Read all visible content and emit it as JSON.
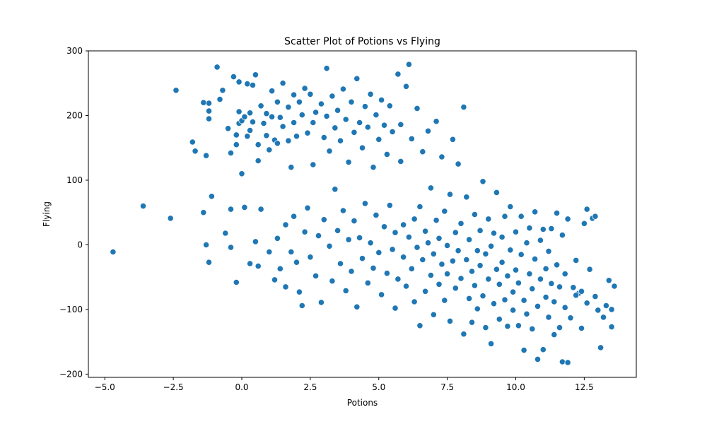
{
  "chart_data": {
    "type": "scatter",
    "title": "Scatter Plot of Potions vs Flying",
    "xlabel": "Potions",
    "ylabel": "Flying",
    "xlim": [
      -5.6,
      14.4
    ],
    "ylim": [
      -205,
      300
    ],
    "x_ticks": [
      -5.0,
      -2.5,
      0.0,
      2.5,
      5.0,
      7.5,
      10.0,
      12.5
    ],
    "x_tick_labels": [
      "−5.0",
      "−2.5",
      "0.0",
      "2.5",
      "5.0",
      "7.5",
      "10.0",
      "12.5"
    ],
    "y_ticks": [
      -200,
      -100,
      0,
      100,
      200,
      300
    ],
    "y_tick_labels": [
      "−200",
      "−100",
      "0",
      "100",
      "200",
      "300"
    ],
    "grid": false,
    "marker_color": "#1f77b4",
    "marker_edge_color": "#ffffff",
    "series": [
      {
        "points": [
          [
            -4.7,
            -11
          ],
          [
            -3.6,
            60
          ],
          [
            -2.6,
            41
          ],
          [
            -2.4,
            239
          ],
          [
            -1.8,
            159
          ],
          [
            -1.7,
            145
          ],
          [
            -1.4,
            220
          ],
          [
            -1.4,
            50
          ],
          [
            -1.3,
            0
          ],
          [
            -1.3,
            138
          ],
          [
            -1.2,
            219
          ],
          [
            -1.2,
            -27
          ],
          [
            -1.2,
            207
          ],
          [
            -1.2,
            195
          ],
          [
            -1.1,
            75
          ],
          [
            -0.9,
            275
          ],
          [
            -0.8,
            225
          ],
          [
            -0.7,
            239
          ],
          [
            -0.6,
            18
          ],
          [
            -0.5,
            180
          ],
          [
            -0.4,
            -4
          ],
          [
            -0.4,
            142
          ],
          [
            -0.4,
            55
          ],
          [
            -0.3,
            260
          ],
          [
            -0.2,
            170
          ],
          [
            -0.2,
            155
          ],
          [
            -0.2,
            -58
          ],
          [
            -0.1,
            206
          ],
          [
            -0.1,
            188
          ],
          [
            -0.1,
            252
          ],
          [
            0.0,
            110
          ],
          [
            0.0,
            192
          ],
          [
            0.1,
            58
          ],
          [
            0.1,
            198
          ],
          [
            0.2,
            168
          ],
          [
            0.2,
            249
          ],
          [
            0.3,
            204
          ],
          [
            0.3,
            177
          ],
          [
            0.3,
            -29
          ],
          [
            0.4,
            190
          ],
          [
            0.4,
            247
          ],
          [
            0.5,
            5
          ],
          [
            0.5,
            263
          ],
          [
            0.6,
            155
          ],
          [
            0.6,
            -33
          ],
          [
            0.6,
            130
          ],
          [
            0.7,
            215
          ],
          [
            0.7,
            55
          ],
          [
            0.8,
            188
          ],
          [
            0.9,
            169
          ],
          [
            0.9,
            203
          ],
          [
            1.0,
            147
          ],
          [
            1.0,
            -11
          ],
          [
            1.1,
            238
          ],
          [
            1.1,
            198
          ],
          [
            1.2,
            162
          ],
          [
            1.2,
            -54
          ],
          [
            1.3,
            221
          ],
          [
            1.3,
            10
          ],
          [
            1.3,
            157
          ],
          [
            1.4,
            197
          ],
          [
            1.4,
            -37
          ],
          [
            1.5,
            250
          ],
          [
            1.5,
            183
          ],
          [
            1.6,
            31
          ],
          [
            1.6,
            -65
          ],
          [
            1.7,
            213
          ],
          [
            1.7,
            161
          ],
          [
            1.8,
            120
          ],
          [
            1.8,
            -11
          ],
          [
            1.9,
            232
          ],
          [
            1.9,
            189
          ],
          [
            1.9,
            44
          ],
          [
            2.0,
            -27
          ],
          [
            2.0,
            168
          ],
          [
            2.1,
            221
          ],
          [
            2.1,
            -73
          ],
          [
            2.2,
            201
          ],
          [
            2.2,
            -94
          ],
          [
            2.3,
            20
          ],
          [
            2.3,
            242
          ],
          [
            2.4,
            173
          ],
          [
            2.4,
            57
          ],
          [
            2.5,
            233
          ],
          [
            2.5,
            -19
          ],
          [
            2.6,
            189
          ],
          [
            2.6,
            124
          ],
          [
            2.7,
            -48
          ],
          [
            2.7,
            205
          ],
          [
            2.8,
            14
          ],
          [
            2.9,
            218
          ],
          [
            2.9,
            -89
          ],
          [
            3.0,
            166
          ],
          [
            3.0,
            39
          ],
          [
            3.1,
            273
          ],
          [
            3.1,
            199
          ],
          [
            3.2,
            -2
          ],
          [
            3.2,
            145
          ],
          [
            3.3,
            230
          ],
          [
            3.3,
            -56
          ],
          [
            3.4,
            181
          ],
          [
            3.4,
            86
          ],
          [
            3.5,
            22
          ],
          [
            3.5,
            208
          ],
          [
            3.6,
            -29
          ],
          [
            3.6,
            161
          ],
          [
            3.7,
            241
          ],
          [
            3.7,
            53
          ],
          [
            3.8,
            -71
          ],
          [
            3.8,
            194
          ],
          [
            3.9,
            8
          ],
          [
            3.9,
            128
          ],
          [
            4.0,
            221
          ],
          [
            4.0,
            -41
          ],
          [
            4.1,
            174
          ],
          [
            4.1,
            37
          ],
          [
            4.2,
            257
          ],
          [
            4.2,
            -96
          ],
          [
            4.3,
            189
          ],
          [
            4.3,
            11
          ],
          [
            4.4,
            150
          ],
          [
            4.4,
            -21
          ],
          [
            4.5,
            214
          ],
          [
            4.5,
            64
          ],
          [
            4.6,
            -59
          ],
          [
            4.6,
            182
          ],
          [
            4.7,
            3
          ],
          [
            4.7,
            233
          ],
          [
            4.8,
            -36
          ],
          [
            4.8,
            120
          ],
          [
            4.9,
            201
          ],
          [
            4.9,
            46
          ],
          [
            5.0,
            -12
          ],
          [
            5.0,
            163
          ],
          [
            5.1,
            224
          ],
          [
            5.1,
            -77
          ],
          [
            5.2,
            28
          ],
          [
            5.2,
            185
          ],
          [
            5.3,
            -44
          ],
          [
            5.3,
            140
          ],
          [
            5.4,
            61
          ],
          [
            5.4,
            215
          ],
          [
            5.5,
            -7
          ],
          [
            5.5,
            175
          ],
          [
            5.6,
            -98
          ],
          [
            5.6,
            19
          ],
          [
            5.7,
            264
          ],
          [
            5.7,
            -53
          ],
          [
            5.8,
            186
          ],
          [
            5.8,
            129
          ],
          [
            5.9,
            31
          ],
          [
            5.9,
            -19
          ],
          [
            6.0,
            245
          ],
          [
            6.0,
            -64
          ],
          [
            6.1,
            279
          ],
          [
            6.1,
            12
          ],
          [
            6.2,
            164
          ],
          [
            6.2,
            -37
          ],
          [
            6.3,
            40
          ],
          [
            6.3,
            -88
          ],
          [
            6.4,
            211
          ],
          [
            6.4,
            -4
          ],
          [
            6.5,
            59
          ],
          [
            6.5,
            -125
          ],
          [
            6.6,
            144
          ],
          [
            6.6,
            -23
          ],
          [
            6.7,
            21
          ],
          [
            6.7,
            -72
          ],
          [
            6.8,
            176
          ],
          [
            6.8,
            3
          ],
          [
            6.9,
            -47
          ],
          [
            6.9,
            88
          ],
          [
            7.0,
            -14
          ],
          [
            7.0,
            -108
          ],
          [
            7.1,
            38
          ],
          [
            7.1,
            191
          ],
          [
            7.2,
            -61
          ],
          [
            7.2,
            10
          ],
          [
            7.3,
            -30
          ],
          [
            7.3,
            136
          ],
          [
            7.4,
            -86
          ],
          [
            7.4,
            52
          ],
          [
            7.5,
            -1
          ],
          [
            7.5,
            -45
          ],
          [
            7.6,
            78
          ],
          [
            7.6,
            -118
          ],
          [
            7.7,
            163
          ],
          [
            7.7,
            -25
          ],
          [
            7.8,
            19
          ],
          [
            7.8,
            -67
          ],
          [
            7.9,
            125
          ],
          [
            7.9,
            -9
          ],
          [
            8.0,
            -52
          ],
          [
            8.0,
            33
          ],
          [
            8.1,
            213
          ],
          [
            8.1,
            -138
          ],
          [
            8.2,
            -23
          ],
          [
            8.2,
            74
          ],
          [
            8.3,
            -83
          ],
          [
            8.3,
            8
          ],
          [
            8.4,
            -41
          ],
          [
            8.4,
            -120
          ],
          [
            8.5,
            47
          ],
          [
            8.5,
            -63
          ],
          [
            8.6,
            -9
          ],
          [
            8.6,
            -99
          ],
          [
            8.7,
            22
          ],
          [
            8.7,
            -32
          ],
          [
            8.8,
            98
          ],
          [
            8.8,
            -79
          ],
          [
            8.9,
            -14
          ],
          [
            8.9,
            -128
          ],
          [
            9.0,
            40
          ],
          [
            9.0,
            -53
          ],
          [
            9.1,
            -153
          ],
          [
            9.1,
            -2
          ],
          [
            9.2,
            -91
          ],
          [
            9.2,
            18
          ],
          [
            9.3,
            -38
          ],
          [
            9.3,
            81
          ],
          [
            9.4,
            -115
          ],
          [
            9.4,
            -61
          ],
          [
            9.5,
            12
          ],
          [
            9.5,
            -27
          ],
          [
            9.6,
            -85
          ],
          [
            9.6,
            44
          ],
          [
            9.7,
            -126
          ],
          [
            9.7,
            -48
          ],
          [
            9.8,
            59
          ],
          [
            9.8,
            -8
          ],
          [
            9.9,
            -73
          ],
          [
            9.9,
            -101
          ],
          [
            10.0,
            20
          ],
          [
            10.0,
            -39
          ],
          [
            10.1,
            -125
          ],
          [
            10.1,
            -59
          ],
          [
            10.2,
            44
          ],
          [
            10.2,
            -15
          ],
          [
            10.3,
            -163
          ],
          [
            10.3,
            -86
          ],
          [
            10.4,
            3
          ],
          [
            10.4,
            -107
          ],
          [
            10.5,
            -45
          ],
          [
            10.5,
            26
          ],
          [
            10.6,
            -130
          ],
          [
            10.6,
            -68
          ],
          [
            10.7,
            51
          ],
          [
            10.7,
            -22
          ],
          [
            10.8,
            -95
          ],
          [
            10.8,
            -177
          ],
          [
            10.9,
            7
          ],
          [
            10.9,
            -53
          ],
          [
            11.0,
            -162
          ],
          [
            11.0,
            24
          ],
          [
            11.1,
            -81
          ],
          [
            11.1,
            -37
          ],
          [
            11.2,
            -112
          ],
          [
            11.2,
            -10
          ],
          [
            11.3,
            -60
          ],
          [
            11.3,
            25
          ],
          [
            11.4,
            -139
          ],
          [
            11.4,
            -88
          ],
          [
            11.5,
            49
          ],
          [
            11.5,
            -31
          ],
          [
            11.6,
            -128
          ],
          [
            11.6,
            -65
          ],
          [
            11.7,
            15
          ],
          [
            11.7,
            -181
          ],
          [
            11.8,
            -97
          ],
          [
            11.8,
            -45
          ],
          [
            11.9,
            -182
          ],
          [
            11.9,
            40
          ],
          [
            12.0,
            -113
          ],
          [
            12.1,
            -66
          ],
          [
            12.2,
            -24
          ],
          [
            12.3,
            -75
          ],
          [
            12.4,
            -129
          ],
          [
            12.5,
            33
          ],
          [
            12.6,
            55
          ],
          [
            12.6,
            -90
          ],
          [
            12.7,
            -38
          ],
          [
            12.8,
            41
          ],
          [
            12.9,
            -80
          ],
          [
            13.0,
            -101
          ],
          [
            13.1,
            -159
          ],
          [
            13.2,
            -112
          ],
          [
            13.3,
            -94
          ],
          [
            13.4,
            -55
          ],
          [
            13.5,
            -127
          ],
          [
            13.5,
            -100
          ],
          [
            13.6,
            -64
          ],
          [
            12.9,
            44
          ],
          [
            12.4,
            -72
          ],
          [
            12.2,
            -78
          ]
        ]
      }
    ]
  }
}
